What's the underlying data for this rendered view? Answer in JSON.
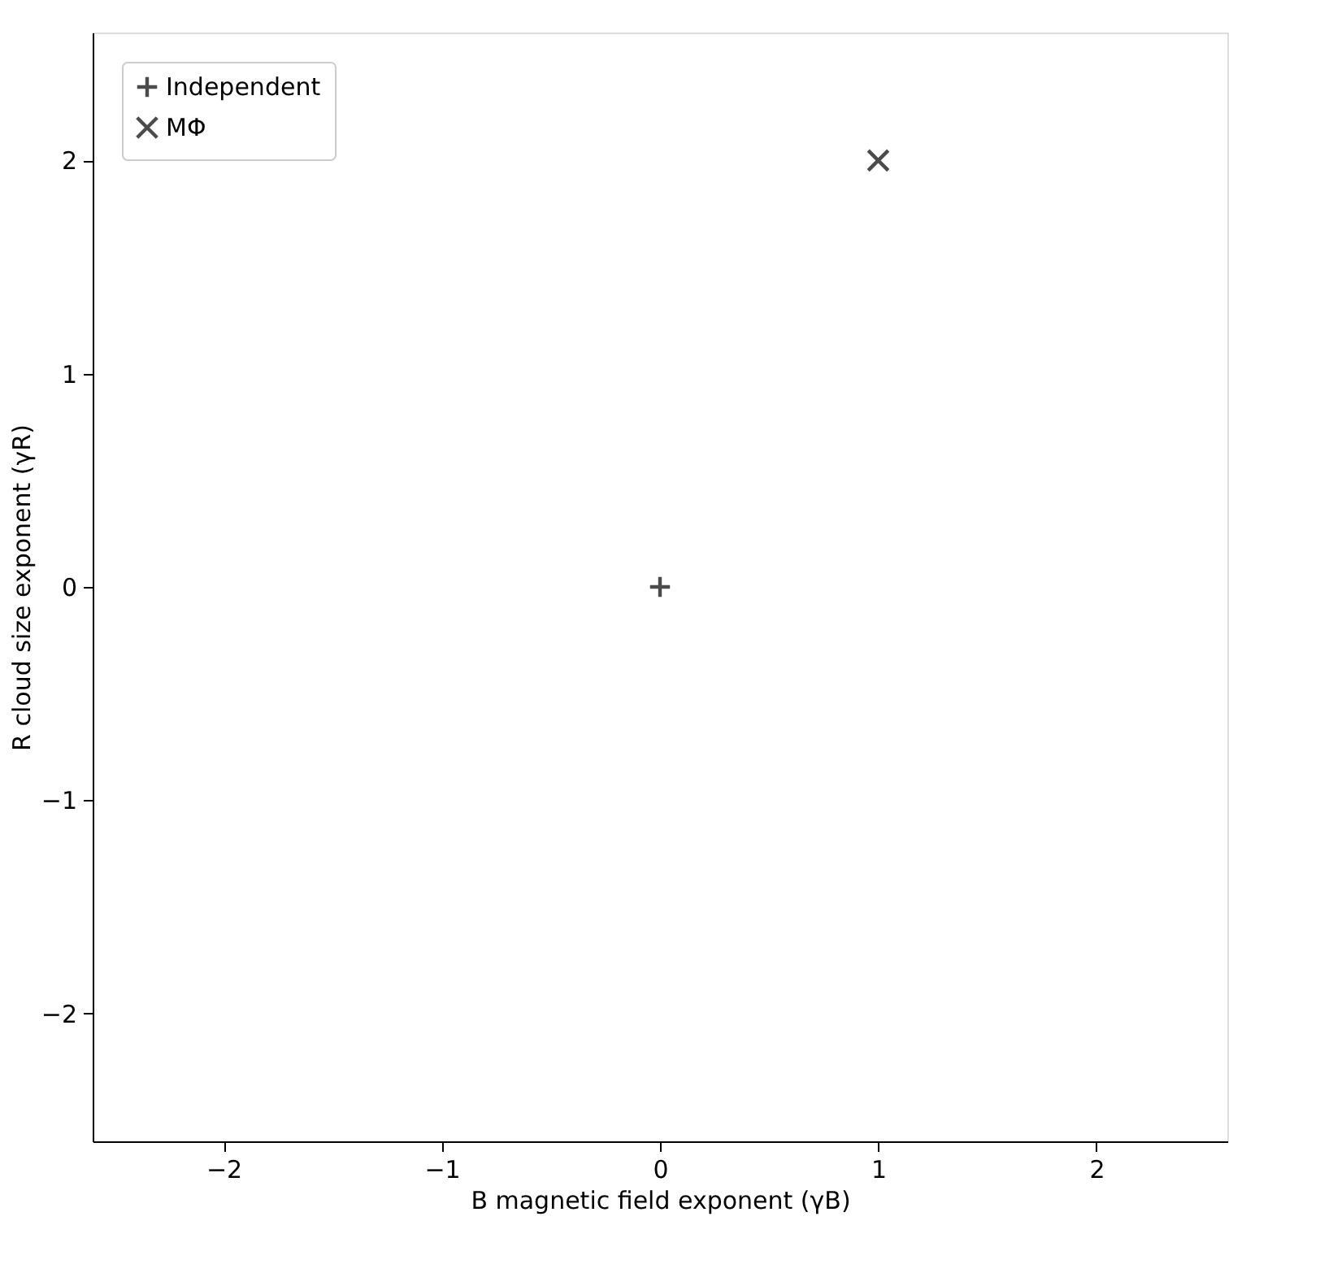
{
  "chart_data": {
    "type": "scatter",
    "xlabel": "B magnetic field exponent (γB)",
    "ylabel": "R cloud size exponent (γR)",
    "series": [
      {
        "name": "Independent",
        "color": "#000000",
        "marker": "cross",
        "x": [
          0
        ],
        "values": [
          0
        ]
      },
      {
        "name": "MΦ",
        "color": "#000000",
        "marker": "x",
        "x": [
          1
        ],
        "values": [
          2
        ]
      }
    ],
    "xlim": [
      -2.6,
      2.6
    ],
    "ylim": [
      -2.6,
      2.6
    ],
    "xticks": [
      {
        "value": -2,
        "label": "−2"
      },
      {
        "value": -1,
        "label": "−1"
      },
      0,
      1,
      2
    ],
    "yticks": [
      {
        "value": -2,
        "label": "−2"
      },
      {
        "value": -1,
        "label": "−1"
      },
      0,
      1,
      2
    ],
    "grid": false,
    "legend": "top left"
  }
}
